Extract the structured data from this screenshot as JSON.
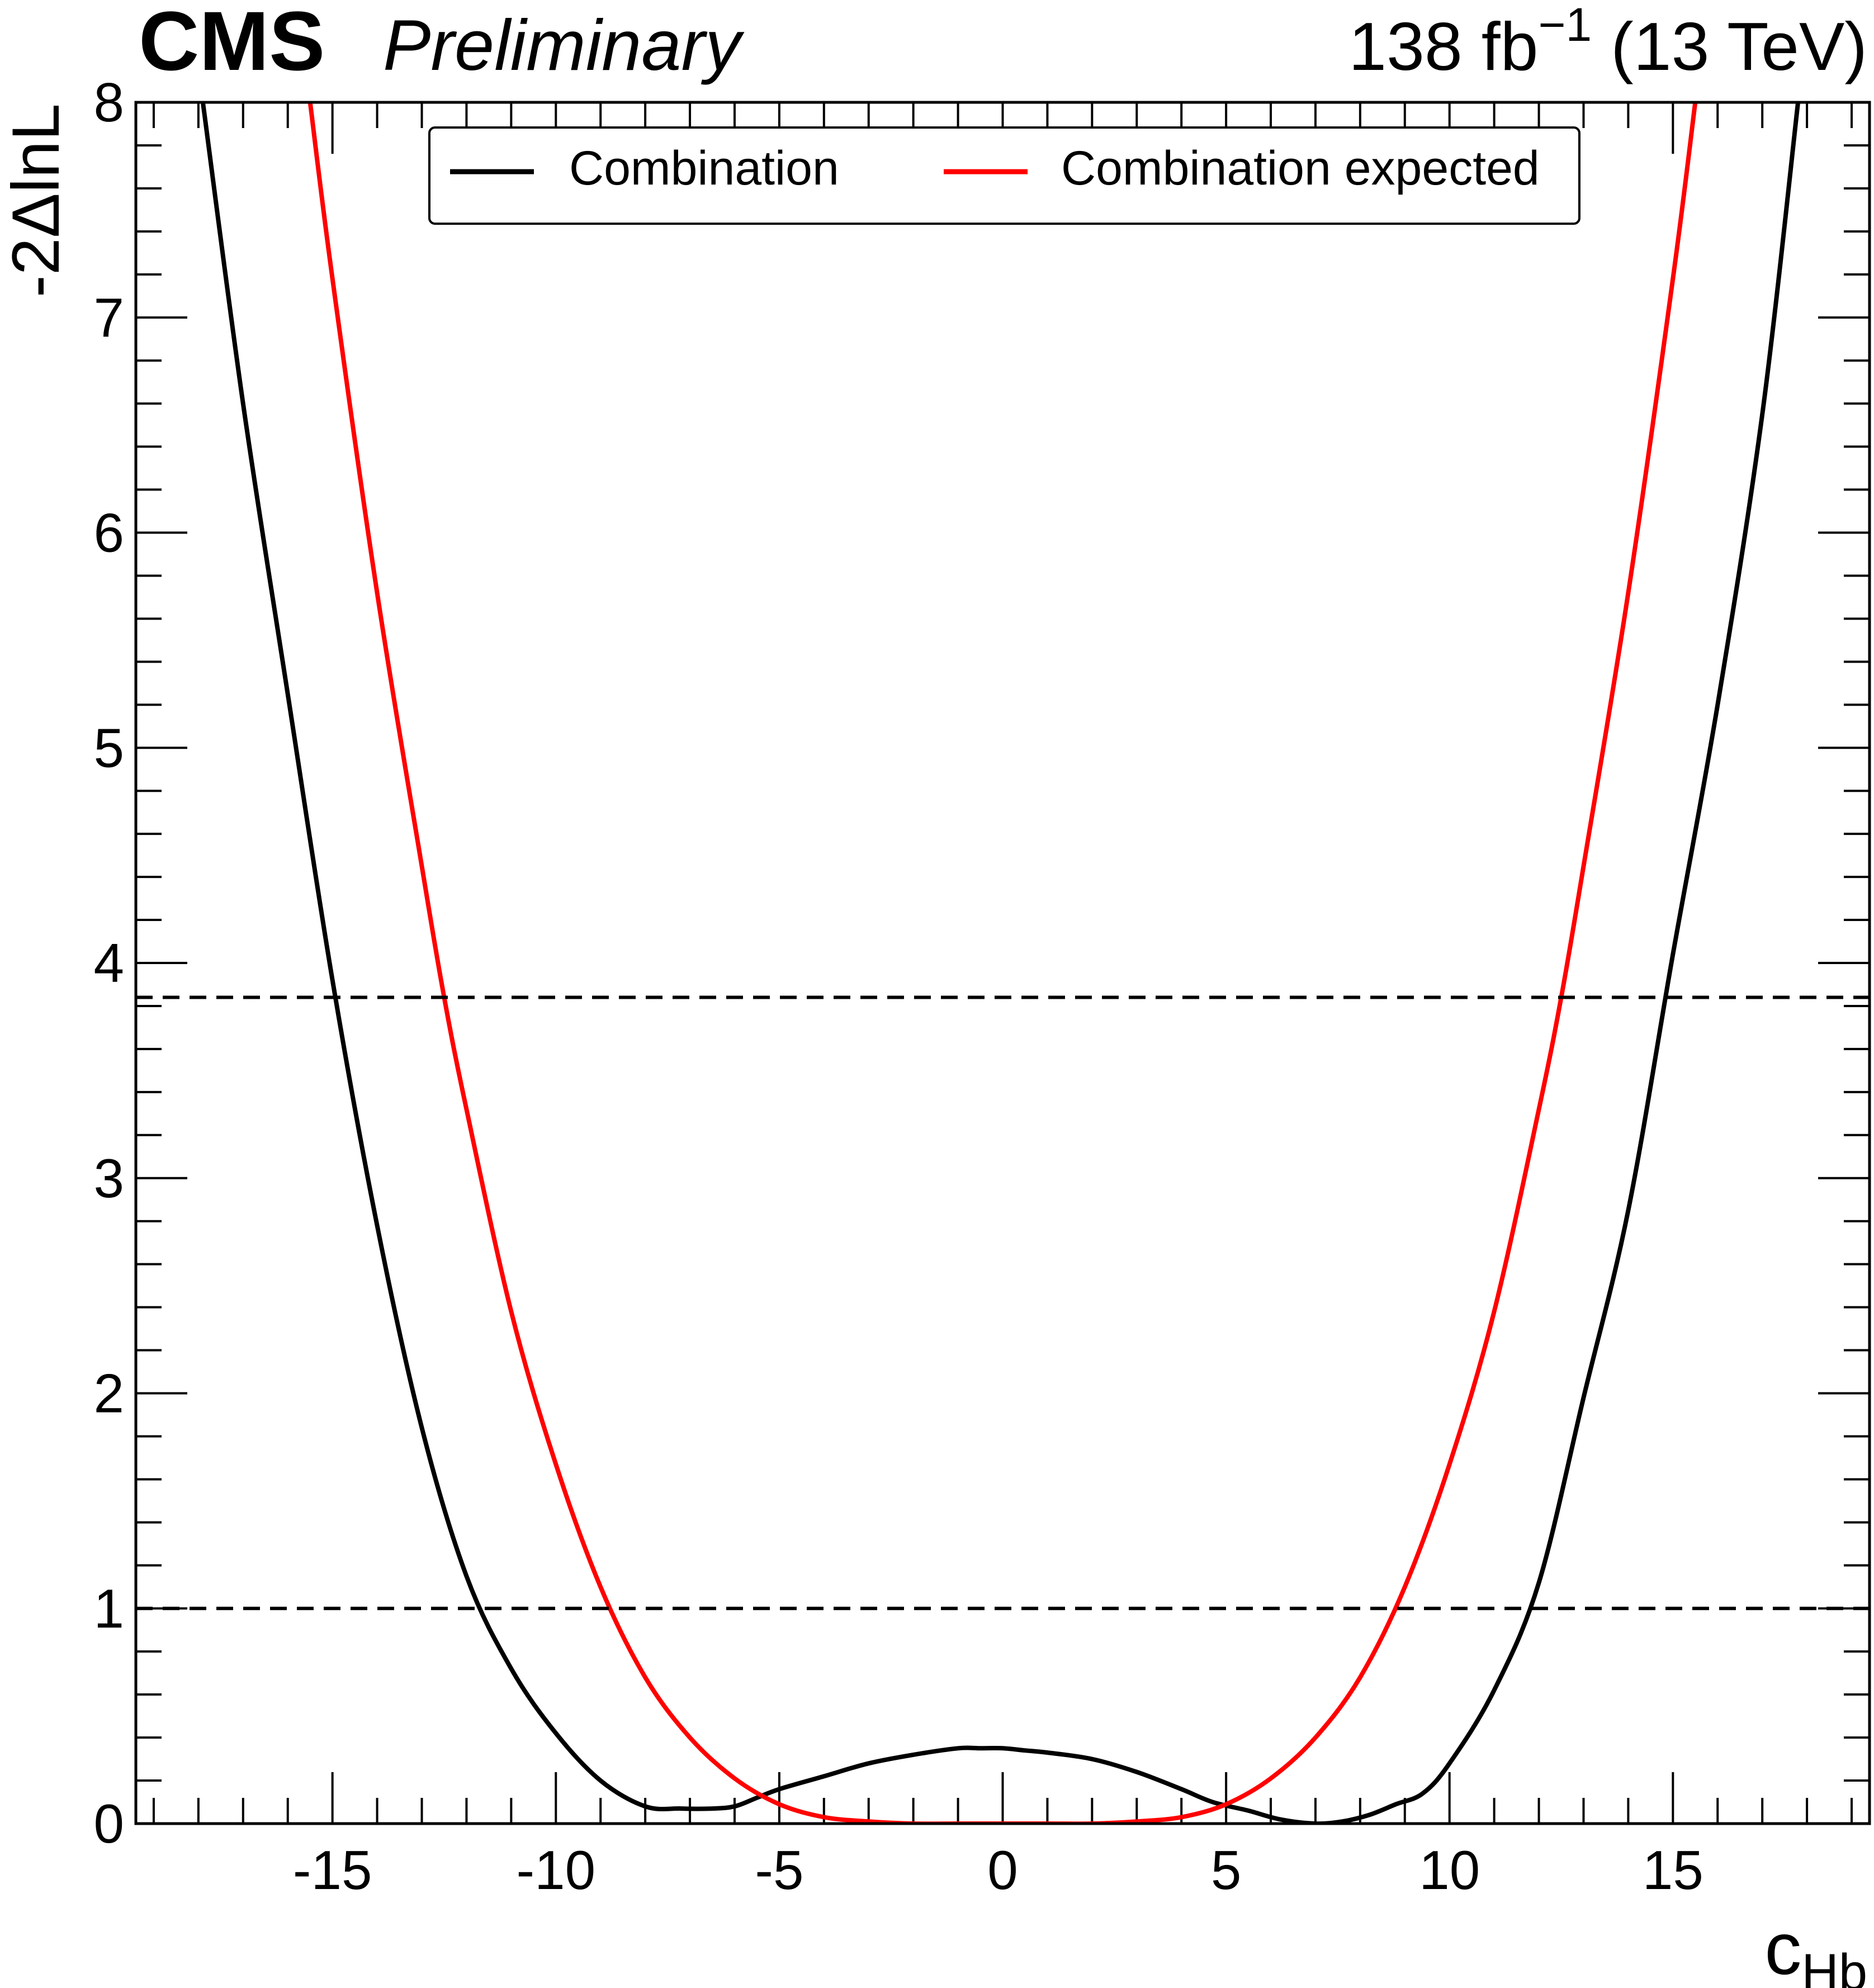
{
  "header": {
    "experiment": "CMS",
    "status": "Preliminary",
    "luminosity_base": "138 fb",
    "luminosity_exp": "−1",
    "energy": " (13 TeV)"
  },
  "chart_data": {
    "type": "line",
    "xlabel_main": "c",
    "xlabel_sub": "Hb",
    "ylabel": "-2ΔlnL",
    "xlim": [
      -19.4,
      19.4
    ],
    "ylim": [
      0,
      8
    ],
    "x_ticks": [
      {
        "value": -15,
        "label": "-15"
      },
      {
        "value": -10,
        "label": "-10"
      },
      {
        "value": -5,
        "label": "-5"
      },
      {
        "value": 0,
        "label": "0"
      },
      {
        "value": 5,
        "label": "5"
      },
      {
        "value": 10,
        "label": "10"
      },
      {
        "value": 15,
        "label": "15"
      }
    ],
    "y_ticks": [
      {
        "value": 0,
        "label": "0"
      },
      {
        "value": 1,
        "label": "1"
      },
      {
        "value": 2,
        "label": "2"
      },
      {
        "value": 3,
        "label": "3"
      },
      {
        "value": 4,
        "label": "4"
      },
      {
        "value": 5,
        "label": "5"
      },
      {
        "value": 6,
        "label": "6"
      },
      {
        "value": 7,
        "label": "7"
      },
      {
        "value": 8,
        "label": "8"
      }
    ],
    "reference_lines": [
      1.0,
      3.84
    ],
    "legend_position": "top",
    "series": [
      {
        "name": "Combination",
        "color": "#000000",
        "x": [
          -17.9,
          -17.0,
          -16.0,
          -15.0,
          -14.0,
          -13.0,
          -12.0,
          -11.0,
          -10.0,
          -9.0,
          -8.0,
          -7.2,
          -6.5,
          -6.0,
          -5.5,
          -5.0,
          -4.0,
          -3.0,
          -2.0,
          -1.0,
          -0.5,
          0.0,
          0.5,
          1.0,
          2.0,
          3.0,
          4.0,
          4.7,
          5.5,
          6.2,
          7.0,
          7.6,
          8.2,
          8.8,
          9.4,
          10.0,
          11.0,
          12.0,
          13.0,
          14.0,
          15.0,
          16.0,
          17.0,
          17.8
        ],
        "y": [
          8.0,
          6.6,
          5.25,
          3.92,
          2.78,
          1.84,
          1.15,
          0.72,
          0.42,
          0.2,
          0.08,
          0.07,
          0.07,
          0.08,
          0.12,
          0.16,
          0.22,
          0.28,
          0.32,
          0.35,
          0.35,
          0.35,
          0.34,
          0.33,
          0.3,
          0.24,
          0.16,
          0.1,
          0.06,
          0.02,
          0.0,
          0.01,
          0.04,
          0.09,
          0.14,
          0.28,
          0.62,
          1.12,
          1.98,
          2.85,
          4.04,
          5.2,
          6.55,
          8.0
        ]
      },
      {
        "name": "Combination expected",
        "color": "#ff0000",
        "x": [
          -15.5,
          -15.0,
          -14.0,
          -13.0,
          -12.5,
          -12.0,
          -11.0,
          -10.0,
          -9.0,
          -8.0,
          -7.0,
          -6.0,
          -5.0,
          -4.0,
          -3.0,
          -2.0,
          -1.0,
          0.0,
          1.0,
          2.0,
          3.0,
          4.0,
          5.0,
          6.0,
          7.0,
          8.0,
          9.0,
          10.0,
          11.0,
          12.0,
          12.5,
          13.0,
          14.0,
          15.0,
          15.5
        ],
        "y": [
          8.0,
          7.18,
          5.72,
          4.45,
          3.84,
          3.32,
          2.38,
          1.67,
          1.1,
          0.68,
          0.4,
          0.21,
          0.09,
          0.03,
          0.01,
          0.0,
          0.0,
          0.0,
          0.0,
          0.0,
          0.01,
          0.03,
          0.09,
          0.21,
          0.4,
          0.68,
          1.1,
          1.67,
          2.38,
          3.32,
          3.84,
          4.45,
          5.72,
          7.18,
          8.0
        ]
      }
    ]
  }
}
